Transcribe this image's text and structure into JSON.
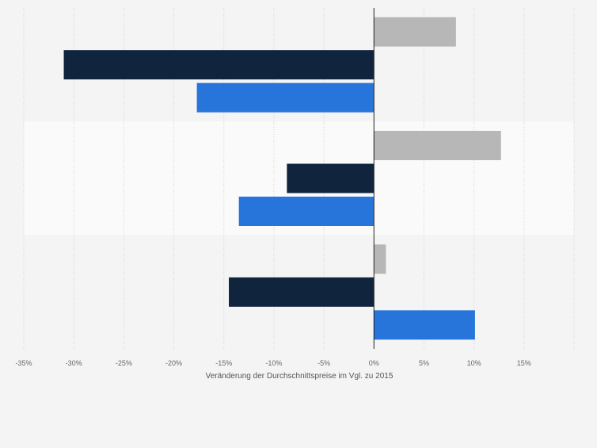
{
  "chart_data": {
    "type": "bar",
    "orientation": "horizontal",
    "title": "",
    "xlabel": "Veränderung der Durchschnittspreise im Vgl. zu 2015",
    "ylabel": "",
    "xlim": [
      -35,
      20
    ],
    "xticks": [
      -35,
      -30,
      -25,
      -20,
      -15,
      -10,
      -5,
      0,
      5,
      10,
      15
    ],
    "xtick_labels": [
      "-35%",
      "-30%",
      "-25%",
      "-20%",
      "-15%",
      "-10%",
      "-5%",
      "0%",
      "5%",
      "10%",
      "15%"
    ],
    "grid": true,
    "legend": "none",
    "categories": [
      "",
      "",
      ""
    ],
    "series": [
      {
        "color": "#b7b7b7",
        "values": [
          8.2,
          12.7,
          1.2
        ]
      },
      {
        "color": "#10243e",
        "values": [
          -31,
          -8.7,
          -14.5
        ]
      },
      {
        "color": "#2775db",
        "values": [
          -17.7,
          -13.5,
          10.1
        ]
      }
    ],
    "band_colors": [
      "#f4f4f4",
      "#fafafa",
      "#f4f4f4"
    ]
  }
}
